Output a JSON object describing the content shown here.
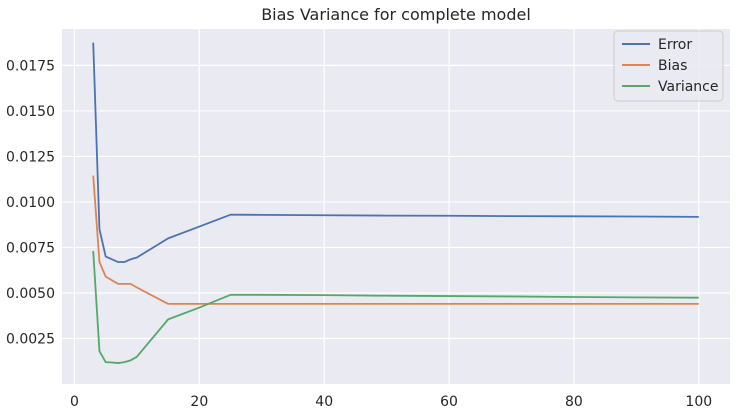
{
  "chart_data": {
    "type": "line",
    "title": "Bias Variance for complete model",
    "xlabel": "",
    "ylabel": "",
    "xlim": [
      -2,
      105
    ],
    "ylim": [
      0,
      0.0195
    ],
    "xticks": [
      0,
      20,
      40,
      60,
      80,
      100
    ],
    "yticks": [
      0.0025,
      0.005,
      0.0075,
      0.01,
      0.0125,
      0.015,
      0.0175
    ],
    "x_tick_labels": [
      "0",
      "20",
      "40",
      "60",
      "80",
      "100"
    ],
    "y_tick_labels": [
      "0.0025",
      "0.0050",
      "0.0075",
      "0.0100",
      "0.0125",
      "0.0150",
      "0.0175"
    ],
    "grid": true,
    "legend_position": "top-right",
    "background_color": "#eaeaf2",
    "grid_color": "#ffffff",
    "x": [
      3,
      4,
      5,
      6,
      7,
      8,
      9,
      10,
      15,
      20,
      25,
      30,
      40,
      50,
      60,
      70,
      80,
      90,
      100
    ],
    "series": [
      {
        "name": "Error",
        "color": "#4c72b0",
        "values": [
          0.01875,
          0.0085,
          0.007,
          0.00685,
          0.0067,
          0.0067,
          0.00685,
          0.00695,
          0.008,
          0.00865,
          0.0093,
          0.00929,
          0.00927,
          0.00925,
          0.00924,
          0.00922,
          0.00921,
          0.0092,
          0.00918
        ]
      },
      {
        "name": "Bias",
        "color": "#dd8452",
        "values": [
          0.01145,
          0.0067,
          0.0059,
          0.0057,
          0.0055,
          0.0055,
          0.0055,
          0.0053,
          0.0044,
          0.0044,
          0.0044,
          0.0044,
          0.0044,
          0.0044,
          0.0044,
          0.0044,
          0.0044,
          0.0044,
          0.0044
        ]
      },
      {
        "name": "Variance",
        "color": "#55a868",
        "values": [
          0.0073,
          0.0018,
          0.0012,
          0.00118,
          0.00115,
          0.0012,
          0.0013,
          0.0015,
          0.00355,
          0.0042,
          0.0049,
          0.0049,
          0.00488,
          0.00485,
          0.00483,
          0.00481,
          0.00478,
          0.00476,
          0.00474
        ]
      }
    ]
  }
}
